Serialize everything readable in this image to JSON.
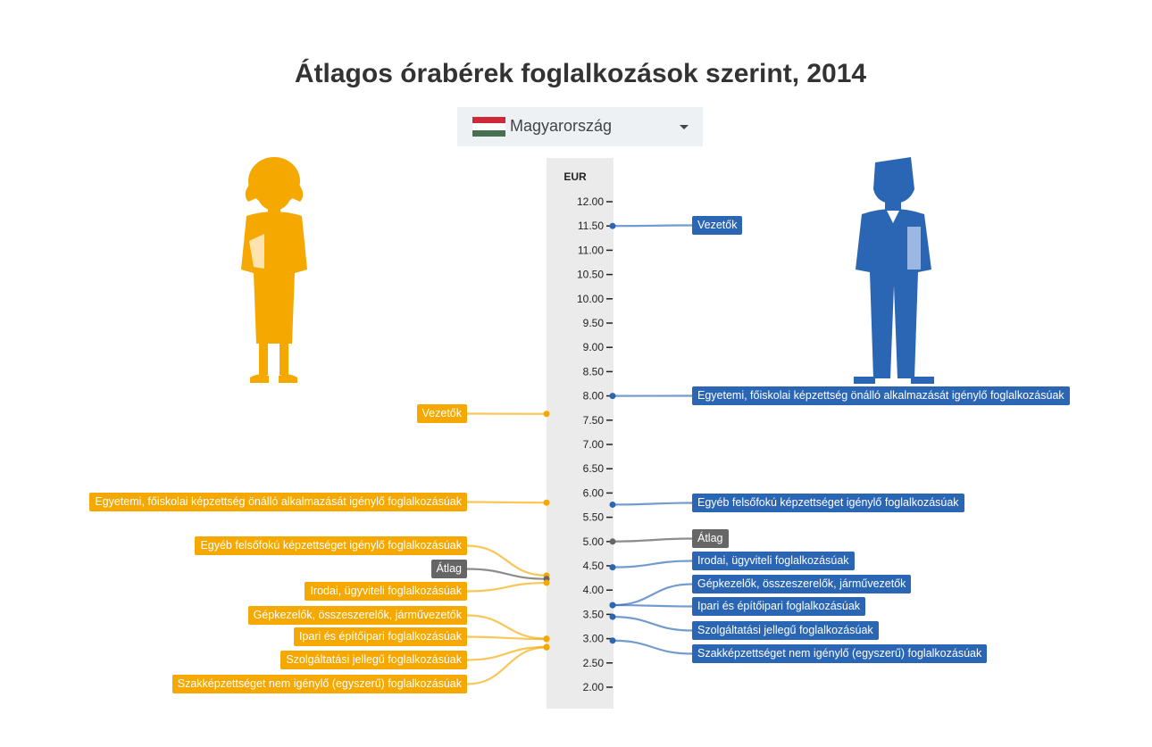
{
  "page": {
    "title": "Átlagos órabérek foglalkozások szerint, 2014"
  },
  "country_select": {
    "selected": "Magyarország",
    "flag_colors": [
      "#ce2939",
      "#ffffff",
      "#477050"
    ],
    "icon": "chevron-down-icon"
  },
  "colors": {
    "women": "#f5a800",
    "men": "#2a66b4",
    "average": "#666666",
    "axis_band": "#ebebeb"
  },
  "icons": {
    "women": "woman-figure-icon",
    "men": "man-figure-icon"
  },
  "chart_data": {
    "type": "dot-comparison",
    "title": "Átlagos órabérek foglalkozások szerint, 2014",
    "ylabel": "EUR",
    "ylim": [
      1.75,
      12.3
    ],
    "yticks": [
      "12.00",
      "11.50",
      "11.00",
      "10.50",
      "10.00",
      "9.50",
      "9.00",
      "8.50",
      "8.00",
      "7.50",
      "7.00",
      "6.50",
      "6.00",
      "5.50",
      "5.00",
      "4.50",
      "4.00",
      "3.50",
      "3.00",
      "2.50",
      "2.00"
    ],
    "series": [
      {
        "side": "women",
        "points": [
          {
            "label": "Vezetők",
            "value": 7.63
          },
          {
            "label": "Egyetemi, főiskolai képzettség önálló alkalmazását igénylő foglalkozásúak",
            "value": 5.8
          },
          {
            "label": "Egyéb felsőfokú képzettséget igénylő foglalkozásúak",
            "value": 4.3
          },
          {
            "label": "Átlag",
            "value": 4.23
          },
          {
            "label": "Irodai, ügyviteli foglalkozásúak",
            "value": 4.15
          },
          {
            "label": "Gépkezelők, összeszerelők, járművezetők",
            "value": 3.0
          },
          {
            "label": "Ipari és építőipari foglalkozásúak",
            "value": 2.99
          },
          {
            "label": "Szolgáltatási jellegű foglalkozásúak",
            "value": 2.83
          },
          {
            "label": "Szakképzettséget nem igénylő (egyszerű) foglalkozásúak",
            "value": 2.82
          }
        ]
      },
      {
        "side": "men",
        "points": [
          {
            "label": "Vezetők",
            "value": 11.5
          },
          {
            "label": "Egyetemi, főiskolai képzettség önálló alkalmazását igénylő foglalkozásúak",
            "value": 8.0
          },
          {
            "label": "Egyéb felsőfokú képzettséget igénylő foglalkozásúak",
            "value": 5.76
          },
          {
            "label": "Átlag",
            "value": 5.0
          },
          {
            "label": "Irodai, ügyviteli foglalkozásúak",
            "value": 4.47
          },
          {
            "label": "Gépkezelők, összeszerelők, járművezetők",
            "value": 3.69
          },
          {
            "label": "Ipari és építőipari foglalkozásúak",
            "value": 3.69
          },
          {
            "label": "Szolgáltatási jellegű foglalkozásúak",
            "value": 3.45
          },
          {
            "label": "Szakképzettséget nem igénylő (egyszerű) foglalkozásúak",
            "value": 2.96
          }
        ]
      }
    ]
  }
}
